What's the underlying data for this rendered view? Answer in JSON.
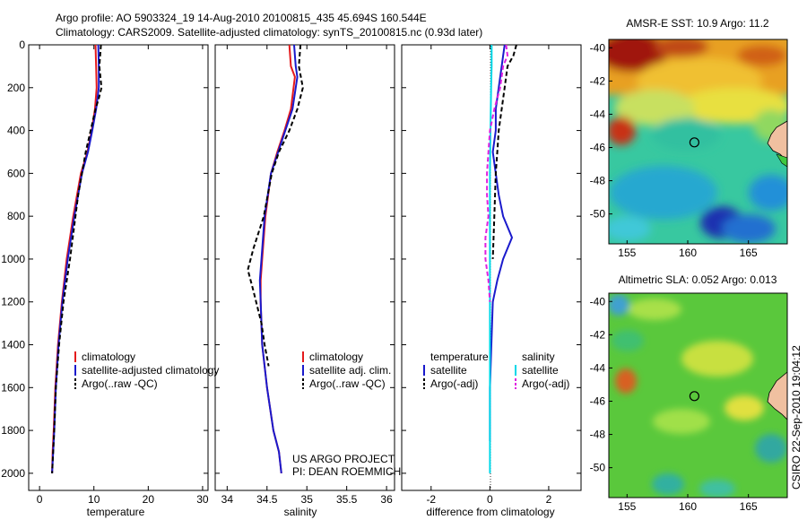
{
  "figure": {
    "title_line1": "Argo profile: AO 5903324_19 14-Aug-2010 20100815_435 45.694S 160.544E",
    "title_line2": "Climatology: CARS2009. Satellite-adjusted climatology: synTS_20100815.nc (0.93d later)",
    "project_line1": "US ARGO PROJECT",
    "project_line2": "PI: DEAN ROEMMICH",
    "stamp": "CSIRO 22-Sep-2010 19:04:12"
  },
  "chart_data": [
    {
      "type": "line",
      "id": "temperature",
      "xlabel": "temperature",
      "ylabel": "",
      "xlim": [
        -2,
        31
      ],
      "ylim": [
        2080,
        0
      ],
      "xticks": [
        0,
        10,
        20,
        30
      ],
      "yticks": [
        0,
        200,
        400,
        600,
        800,
        1000,
        1200,
        1400,
        1600,
        1800,
        2000
      ],
      "legend": [
        "climatology",
        "satellite-adjusted climatology",
        "Argo(..raw -QC)"
      ],
      "series": [
        {
          "name": "climatology",
          "color": "#e41a1c",
          "dash": "solid",
          "x": [
            10.3,
            10.4,
            10.5,
            10.2,
            9.6,
            8.8,
            7.6,
            6.2,
            5.0,
            4.1,
            3.4,
            2.9,
            2.6,
            2.4,
            2.3
          ],
          "y": [
            0,
            100,
            200,
            300,
            400,
            500,
            600,
            800,
            1000,
            1200,
            1400,
            1600,
            1800,
            1900,
            2000
          ]
        },
        {
          "name": "satellite-adjusted climatology",
          "color": "#1a1acc",
          "dash": "solid",
          "x": [
            10.8,
            10.9,
            10.9,
            10.4,
            9.7,
            8.9,
            7.8,
            6.4,
            5.2,
            4.2,
            3.5,
            3.0,
            2.7,
            2.5,
            2.3
          ],
          "y": [
            0,
            100,
            200,
            300,
            400,
            500,
            600,
            800,
            1000,
            1200,
            1400,
            1600,
            1800,
            1900,
            2000
          ]
        },
        {
          "name": "Argo(..raw -QC)",
          "color": "#000000",
          "dash": "dashed",
          "x": [
            11.3,
            11.0,
            11.4,
            10.9,
            10.3,
            9.4,
            8.5,
            7.1,
            5.6,
            4.4,
            3.6,
            3.0,
            2.7,
            2.5,
            2.3
          ],
          "y": [
            0,
            100,
            200,
            250,
            300,
            400,
            500,
            700,
            1000,
            1200,
            1400,
            1600,
            1800,
            1900,
            2000
          ]
        }
      ]
    },
    {
      "type": "line",
      "id": "salinity",
      "xlabel": "salinity",
      "ylabel": "",
      "xlim": [
        33.85,
        36.1
      ],
      "ylim": [
        2080,
        0
      ],
      "xticks": [
        34,
        34.5,
        35,
        35.5,
        36
      ],
      "legend": [
        "climatology",
        "satellite adj. clim.",
        "Argo(..raw -QC)"
      ],
      "series": [
        {
          "name": "climatology",
          "color": "#e41a1c",
          "dash": "solid",
          "x": [
            34.78,
            34.8,
            34.85,
            34.8,
            34.72,
            34.63,
            34.55,
            34.48,
            34.44,
            34.42,
            34.42,
            34.44,
            34.5,
            34.58,
            34.65,
            34.68
          ],
          "y": [
            0,
            100,
            150,
            300,
            400,
            500,
            600,
            800,
            1000,
            1100,
            1200,
            1400,
            1600,
            1800,
            1900,
            2000
          ]
        },
        {
          "name": "satellite adj. clim.",
          "color": "#1a1acc",
          "dash": "solid",
          "x": [
            34.84,
            34.86,
            34.88,
            34.82,
            34.73,
            34.64,
            34.55,
            34.47,
            34.43,
            34.41,
            34.42,
            34.44,
            34.5,
            34.58,
            34.65,
            34.68
          ],
          "y": [
            0,
            100,
            150,
            300,
            400,
            500,
            600,
            800,
            1000,
            1100,
            1200,
            1400,
            1600,
            1800,
            1900,
            2000
          ]
        },
        {
          "name": "Argo(..raw -QC)",
          "color": "#000000",
          "dash": "dashed",
          "x": [
            34.92,
            34.9,
            34.95,
            34.88,
            34.78,
            34.65,
            34.56,
            34.46,
            34.33,
            34.26,
            34.33,
            34.43,
            34.47,
            34.52
          ],
          "y": [
            0,
            100,
            200,
            300,
            400,
            500,
            600,
            800,
            950,
            1050,
            1150,
            1300,
            1400,
            1500
          ]
        }
      ]
    },
    {
      "type": "line",
      "id": "difference",
      "xlabel": "difference from climatology",
      "ylabel": "",
      "xlim": [
        -3,
        3.1
      ],
      "ylim": [
        2080,
        0
      ],
      "xticks": [
        -2,
        0,
        2
      ],
      "legend": [
        "temperature",
        "satellite",
        "Argo(-adj)",
        "salinity",
        "satellite",
        "Argo(-adj)"
      ],
      "series": [
        {
          "name": "temperature satellite",
          "color": "#1a1acc",
          "dash": "solid",
          "x": [
            0.5,
            0.4,
            0.3,
            0.2,
            0.2,
            0.1,
            0.2,
            0.3,
            0.45,
            0.75,
            0.45,
            0.25,
            0.1,
            0.05,
            0.0,
            0.0,
            0.0
          ],
          "y": [
            0,
            100,
            200,
            300,
            400,
            500,
            600,
            700,
            800,
            900,
            1000,
            1100,
            1200,
            1400,
            1600,
            1800,
            1850
          ]
        },
        {
          "name": "temperature Argo(-adj)",
          "color": "#000000",
          "dash": "dashed",
          "x": [
            0.9,
            0.8,
            0.6,
            0.5,
            0.4,
            0.3,
            0.25,
            0.2,
            0.15,
            0.1
          ],
          "y": [
            0,
            50,
            100,
            200,
            300,
            400,
            500,
            600,
            800,
            1000
          ]
        },
        {
          "name": "salinity satellite",
          "color": "#00d8e8",
          "dash": "solid",
          "x": [
            0.06,
            0.06,
            0.04,
            0.02,
            0.0,
            0.0,
            0.0,
            0.0,
            0.0,
            0.0
          ],
          "y": [
            0,
            100,
            200,
            400,
            600,
            800,
            1000,
            1200,
            1600,
            2000
          ]
        },
        {
          "name": "salinity Argo(-adj)",
          "color": "#e020e0",
          "dash": "dashed",
          "x": [
            0.55,
            0.6,
            0.45,
            0.35,
            0.15,
            0.0,
            -0.05,
            -0.1,
            -0.1,
            -0.05,
            -0.15,
            -0.15,
            -0.05,
            0.0
          ],
          "y": [
            0,
            50,
            100,
            200,
            300,
            400,
            500,
            600,
            700,
            800,
            900,
            1000,
            1100,
            1200
          ]
        }
      ]
    },
    {
      "type": "heatmap",
      "id": "sst",
      "title": "AMSR-E SST: 10.9 Argo: 11.2",
      "xlim": [
        153.5,
        168.2
      ],
      "ylim": [
        -51.8,
        -39.5
      ],
      "xticks": [
        155,
        160,
        165
      ],
      "yticks": [
        -40,
        -42,
        -44,
        -46,
        -48,
        -50
      ],
      "marker": {
        "lon": 160.544,
        "lat": -45.694
      }
    },
    {
      "type": "heatmap",
      "id": "sla",
      "title": "Altimetric SLA: 0.052 Argo: 0.013",
      "xlim": [
        153.5,
        168.2
      ],
      "ylim": [
        -51.8,
        -39.5
      ],
      "xticks": [
        155,
        160,
        165
      ],
      "yticks": [
        -40,
        -42,
        -44,
        -46,
        -48,
        -50
      ],
      "marker": {
        "lon": 160.544,
        "lat": -45.694
      }
    }
  ]
}
